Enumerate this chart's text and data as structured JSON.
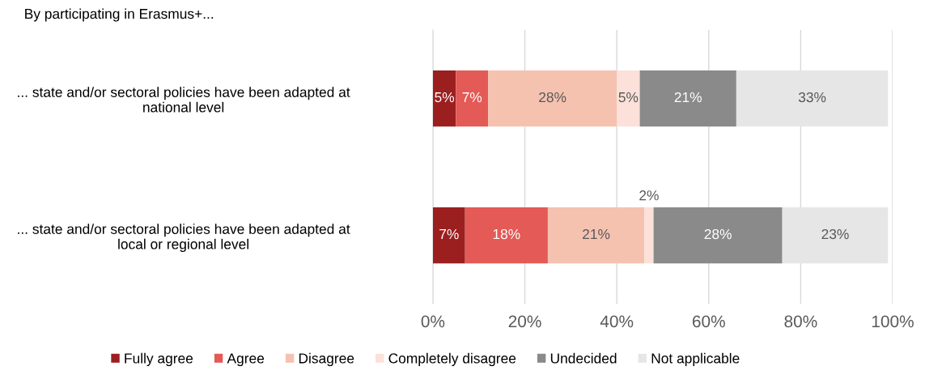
{
  "chart_data": {
    "type": "bar",
    "orientation": "horizontal",
    "stacked": true,
    "title": "By participating in Erasmus+...",
    "categories": [
      "... state and/or sectoral policies have been adapted at\nnational level",
      "... state and/or sectoral policies have been adapted at\nlocal or regional level"
    ],
    "series": [
      {
        "name": "Fully agree",
        "color": "#9c1f1f",
        "values": [
          5,
          7
        ],
        "value_labels": [
          "5%",
          "7%"
        ]
      },
      {
        "name": "Agree",
        "color": "#e35a56",
        "values": [
          7,
          18
        ],
        "value_labels": [
          "7%",
          "18%"
        ]
      },
      {
        "name": "Disagree",
        "color": "#f5c2b0",
        "values": [
          28,
          21
        ],
        "value_labels": [
          "28%",
          "21%"
        ]
      },
      {
        "name": "Completely disagree",
        "color": "#fbe1d9",
        "values": [
          5,
          2
        ],
        "value_labels": [
          "5%",
          "2%"
        ]
      },
      {
        "name": "Undecided",
        "color": "#8a8a8a",
        "values": [
          21,
          28
        ],
        "value_labels": [
          "21%",
          "28%"
        ]
      },
      {
        "name": "Not applicable",
        "color": "#e6e6e6",
        "values": [
          33,
          23
        ],
        "value_labels": [
          "33%",
          "23%"
        ]
      }
    ],
    "xlim": [
      0,
      100
    ],
    "xticks": [
      {
        "value": 0,
        "label": "0%"
      },
      {
        "value": 20,
        "label": "20%"
      },
      {
        "value": 40,
        "label": "40%"
      },
      {
        "value": 60,
        "label": "60%"
      },
      {
        "value": 80,
        "label": "80%"
      },
      {
        "value": 100,
        "label": "100%"
      }
    ],
    "grid": "x",
    "legend": "bottom"
  }
}
